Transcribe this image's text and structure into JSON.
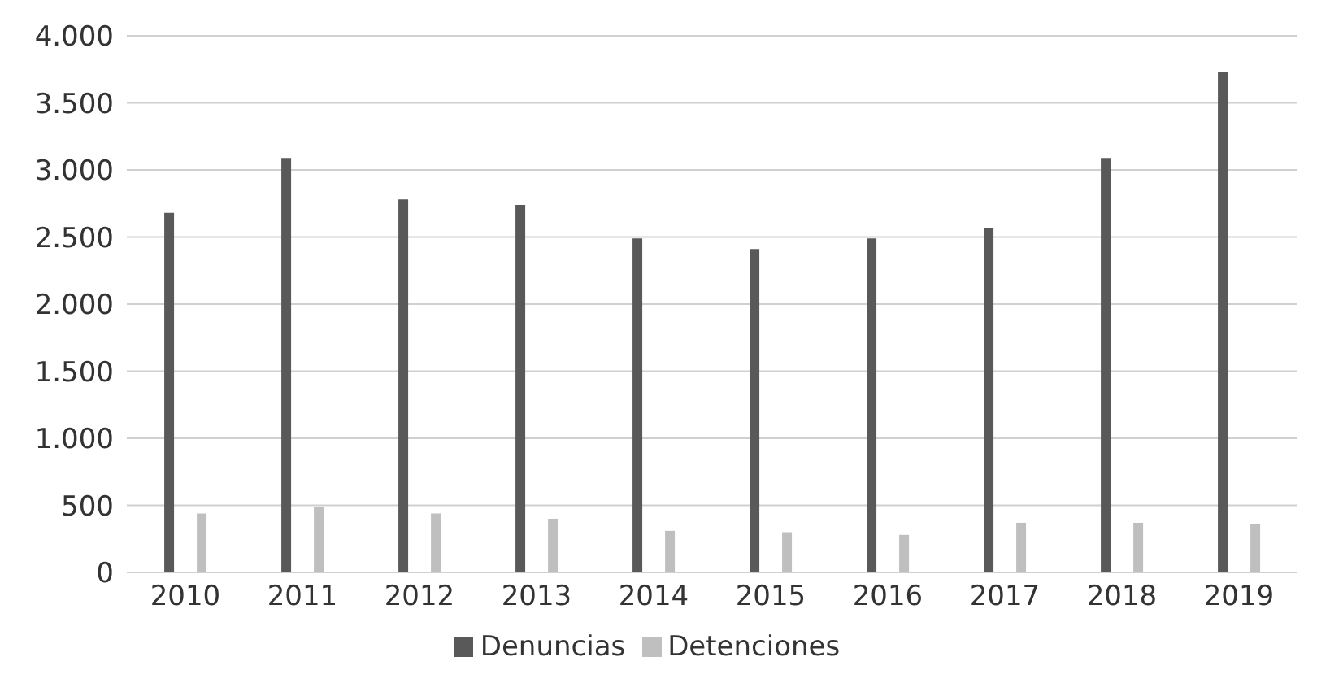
{
  "chart_data": {
    "type": "bar",
    "categories": [
      "2010",
      "2011",
      "2012",
      "2013",
      "2014",
      "2015",
      "2016",
      "2017",
      "2018",
      "2019"
    ],
    "series": [
      {
        "name": "Denuncias",
        "color": "#595959",
        "values": [
          2680,
          3090,
          2780,
          2740,
          2490,
          2410,
          2490,
          2570,
          3090,
          3730
        ]
      },
      {
        "name": "Detenciones",
        "color": "#bfbfbf",
        "values": [
          440,
          490,
          440,
          400,
          310,
          300,
          280,
          370,
          370,
          360
        ]
      }
    ],
    "ylim": [
      0,
      4000
    ],
    "yticks": [
      {
        "value": 0,
        "label": "0"
      },
      {
        "value": 500,
        "label": "500"
      },
      {
        "value": 1000,
        "label": "1.000"
      },
      {
        "value": 1500,
        "label": "1.500"
      },
      {
        "value": 2000,
        "label": "2.000"
      },
      {
        "value": 2500,
        "label": "2.500"
      },
      {
        "value": 3000,
        "label": "3.000"
      },
      {
        "value": 3500,
        "label": "3.500"
      },
      {
        "value": 4000,
        "label": "4.000"
      }
    ],
    "grid": "y",
    "legend": "bottom"
  }
}
